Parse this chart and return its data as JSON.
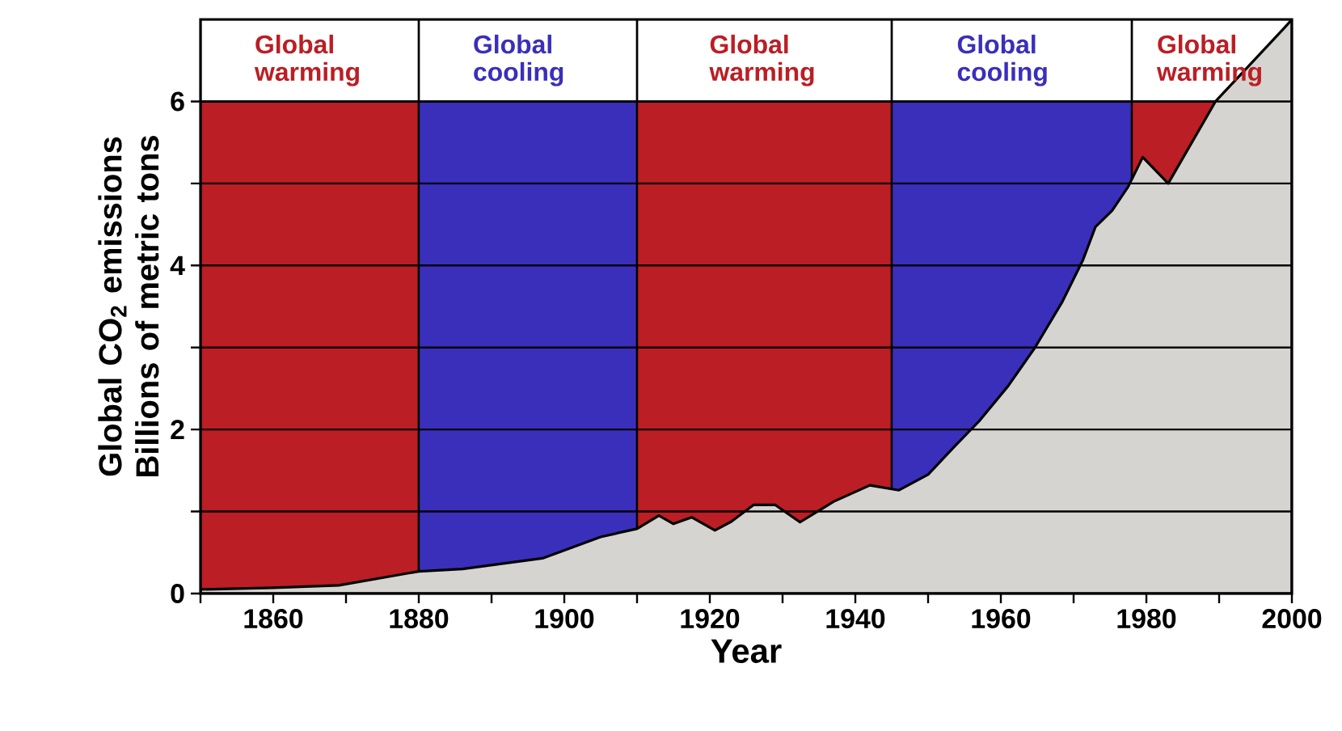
{
  "chart_data": {
    "type": "area",
    "xlabel": "Year",
    "ylabel": "Global CO$_{2}$ emissions Billions of metric tons",
    "x": [
      1850,
      1860,
      1869,
      1880,
      1886,
      1897,
      1905,
      1910,
      1913,
      1915,
      1917.5,
      1920.7,
      1923,
      1926,
      1929,
      1932.4,
      1937,
      1942,
      1946,
      1950,
      1953.5,
      1957,
      1961,
      1964.7,
      1968.4,
      1971.3,
      1973,
      1975.3,
      1977.5,
      1979.5,
      1983,
      1989.5,
      1999,
      2000
    ],
    "series": [
      {
        "color": "#d6d4d0",
        "values": [
          0.05,
          0.07,
          0.1,
          0.27,
          0.3,
          0.43,
          0.69,
          0.79,
          0.95,
          0.85,
          0.93,
          0.77,
          0.88,
          1.08,
          1.08,
          0.87,
          1.12,
          1.32,
          1.26,
          1.45,
          1.78,
          2.1,
          2.53,
          3.0,
          3.55,
          4.07,
          4.47,
          4.67,
          4.96,
          5.32,
          5.0,
          6.0,
          6.9,
          7.0
        ]
      }
    ],
    "xlim": [
      1850,
      2000
    ],
    "ylim": [
      0,
      7
    ],
    "xticks": [
      {
        "value": 1850,
        "label": null
      },
      1860,
      {
        "value": 1870,
        "label": null
      },
      1880,
      {
        "value": 1890,
        "label": null
      },
      1900,
      {
        "value": 1910,
        "label": null
      },
      1920,
      {
        "value": 1930,
        "label": null
      },
      1940,
      {
        "value": 1950,
        "label": null
      },
      1960,
      {
        "value": 1970,
        "label": null
      },
      1980,
      {
        "value": 1990,
        "label": null
      },
      2000
    ],
    "yticks": [
      0,
      {
        "value": 1,
        "label": null
      },
      2,
      {
        "value": 3,
        "label": null
      },
      4,
      {
        "value": 5,
        "label": null
      },
      6
    ],
    "grid": "y",
    "bands": [
      {
        "axis": "x",
        "from": 1850,
        "to": 1880,
        "label": "Global warming",
        "color": "#bb1e24"
      },
      {
        "axis": "x",
        "from": 1880,
        "to": 1910,
        "label": "Global cooling",
        "color": "#3a2fbb"
      },
      {
        "axis": "x",
        "from": 1910,
        "to": 1945,
        "label": "Global warming",
        "color": "#bb1e24"
      },
      {
        "axis": "x",
        "from": 1945,
        "to": 1978,
        "label": "Global cooling",
        "color": "#3a2fbb"
      },
      {
        "axis": "x",
        "from": 1978,
        "to": 2000,
        "label": "Global warming",
        "color": "#bb1e24"
      }
    ]
  }
}
